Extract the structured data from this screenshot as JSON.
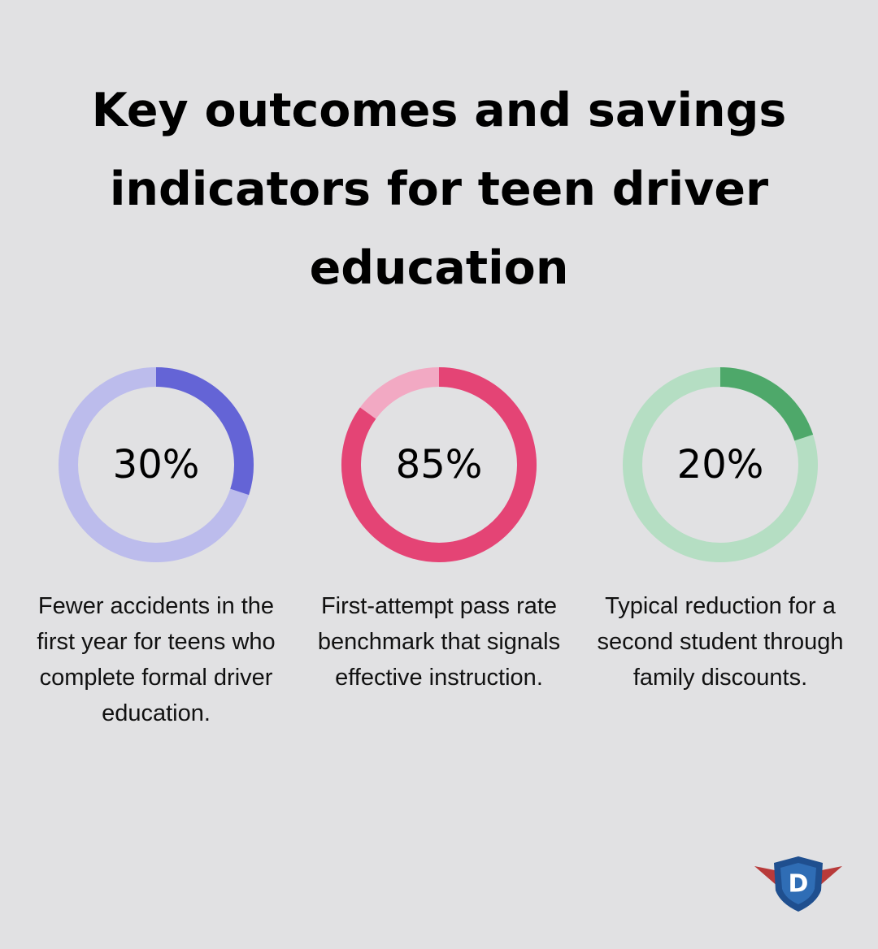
{
  "title": "Key outcomes and savings indicators for teen driver education",
  "chart_data": [
    {
      "type": "donut",
      "values": [
        30
      ],
      "value_labels": [
        "30%"
      ],
      "caption": "Fewer accidents in the first year for teens who complete formal driver education.",
      "color": "#6464d6",
      "track_color": "#bcbcec"
    },
    {
      "type": "donut",
      "values": [
        85
      ],
      "value_labels": [
        "85%"
      ],
      "caption": "First-attempt pass rate benchmark that signals effective instruction.",
      "color": "#e44475",
      "track_color": "#f2a9c3"
    },
    {
      "type": "donut",
      "values": [
        20
      ],
      "value_labels": [
        "20%"
      ],
      "caption": "Typical reduction for a second student through family discounts.",
      "color": "#4ea86a",
      "track_color": "#b5dec3"
    }
  ],
  "logo": {
    "letter": "D"
  }
}
